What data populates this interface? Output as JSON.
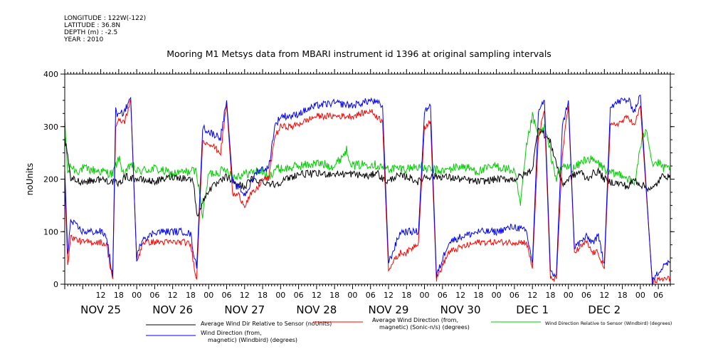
{
  "header": {
    "meta_lines": [
      "LONGITUDE : 122W(-122)",
      "LATITUDE : 36.8N",
      "DEPTH (m) : -2.5",
      "YEAR : 2010"
    ],
    "title": "Mooring M1 Metsys data from MBARI instrument id 1396 at original sampling intervals"
  },
  "chart_data": {
    "type": "line",
    "title": "Mooring M1 Metsys data from MBARI instrument id 1396 at original sampling intervals",
    "ylabel": "noUnits",
    "xlabel": "",
    "ylim": [
      0,
      400
    ],
    "yticks": [
      0,
      100,
      200,
      300,
      400
    ],
    "xlim_hours": [
      0,
      202
    ],
    "x_hour_tick_labels": [
      {
        "hour": 12,
        "label": "12"
      },
      {
        "hour": 18,
        "label": "18"
      },
      {
        "hour": 24,
        "label": "00"
      },
      {
        "hour": 30,
        "label": "06"
      },
      {
        "hour": 36,
        "label": "12"
      },
      {
        "hour": 42,
        "label": "18"
      },
      {
        "hour": 48,
        "label": "00"
      },
      {
        "hour": 54,
        "label": "06"
      },
      {
        "hour": 60,
        "label": "12"
      },
      {
        "hour": 66,
        "label": "18"
      },
      {
        "hour": 72,
        "label": "00"
      },
      {
        "hour": 78,
        "label": "06"
      },
      {
        "hour": 84,
        "label": "12"
      },
      {
        "hour": 90,
        "label": "18"
      },
      {
        "hour": 96,
        "label": "00"
      },
      {
        "hour": 102,
        "label": "06"
      },
      {
        "hour": 108,
        "label": "12"
      },
      {
        "hour": 114,
        "label": "18"
      },
      {
        "hour": 120,
        "label": "00"
      },
      {
        "hour": 126,
        "label": "06"
      },
      {
        "hour": 132,
        "label": "12"
      },
      {
        "hour": 138,
        "label": "18"
      },
      {
        "hour": 144,
        "label": "00"
      },
      {
        "hour": 150,
        "label": "06"
      },
      {
        "hour": 156,
        "label": "12"
      },
      {
        "hour": 162,
        "label": "18"
      },
      {
        "hour": 168,
        "label": "00"
      },
      {
        "hour": 174,
        "label": "06"
      },
      {
        "hour": 180,
        "label": "12"
      },
      {
        "hour": 186,
        "label": "18"
      },
      {
        "hour": 192,
        "label": "00"
      },
      {
        "hour": 198,
        "label": "06"
      }
    ],
    "x_day_labels": [
      {
        "hour": 12,
        "label": "NOV 25"
      },
      {
        "hour": 36,
        "label": "NOV 26"
      },
      {
        "hour": 60,
        "label": "NOV 27"
      },
      {
        "hour": 84,
        "label": "NOV 28"
      },
      {
        "hour": 108,
        "label": "NOV 29"
      },
      {
        "hour": 132,
        "label": "NOV 30"
      },
      {
        "hour": 156,
        "label": "DEC  1"
      },
      {
        "hour": 180,
        "label": "DEC  2"
      }
    ],
    "series": [
      {
        "name": "Average Wind Dir Relative to Sensor (noUnits)",
        "color": "#000000",
        "x": [
          0,
          2,
          6,
          12,
          16,
          18,
          20,
          24,
          30,
          36,
          42,
          43,
          44,
          48,
          52,
          54,
          55,
          56,
          60,
          62,
          66,
          70,
          74,
          78,
          84,
          90,
          96,
          102,
          104,
          106,
          108,
          110,
          114,
          118,
          120,
          126,
          132,
          138,
          144,
          150,
          154,
          156,
          158,
          162,
          166,
          168,
          172,
          174,
          176,
          178,
          180,
          182,
          186,
          188,
          190,
          192,
          196,
          200,
          202
        ],
        "y": [
          280,
          200,
          195,
          200,
          195,
          190,
          205,
          200,
          195,
          205,
          200,
          195,
          130,
          180,
          195,
          205,
          200,
          195,
          185,
          200,
          195,
          190,
          200,
          210,
          210,
          210,
          210,
          205,
          215,
          200,
          195,
          205,
          205,
          195,
          205,
          205,
          200,
          195,
          200,
          200,
          210,
          220,
          300,
          270,
          190,
          200,
          215,
          200,
          210,
          215,
          200,
          195,
          190,
          185,
          200,
          190,
          180,
          210,
          200
        ]
      },
      {
        "name": "Average Wind Direction (from, magnetic) (Sonic-n/s) (degrees)",
        "color": "#ff0000",
        "x": [
          0,
          1,
          2,
          6,
          12,
          14,
          15,
          16,
          17,
          18,
          20,
          22,
          24,
          26,
          28,
          30,
          34,
          40,
          42,
          43,
          44,
          46,
          48,
          52,
          54,
          56,
          58,
          60,
          62,
          64,
          66,
          68,
          70,
          72,
          76,
          80,
          84,
          90,
          96,
          102,
          106,
          108,
          112,
          114,
          116,
          118,
          120,
          122,
          124,
          128,
          132,
          138,
          144,
          150,
          154,
          156,
          158,
          160,
          162,
          164,
          166,
          168,
          170,
          172,
          174,
          176,
          178,
          180,
          182,
          186,
          188,
          190,
          192,
          196,
          200,
          202
        ],
        "y": [
          200,
          40,
          90,
          80,
          80,
          75,
          40,
          10,
          300,
          310,
          310,
          350,
          40,
          80,
          80,
          80,
          80,
          80,
          75,
          40,
          10,
          270,
          270,
          250,
          345,
          170,
          170,
          150,
          170,
          180,
          200,
          200,
          280,
          300,
          300,
          310,
          320,
          320,
          320,
          330,
          310,
          30,
          60,
          60,
          70,
          80,
          300,
          310,
          10,
          60,
          70,
          80,
          80,
          80,
          80,
          30,
          280,
          330,
          10,
          10,
          250,
          340,
          60,
          70,
          80,
          60,
          60,
          30,
          300,
          310,
          320,
          300,
          340,
          5,
          10,
          10
        ]
      },
      {
        "name": "Wind Direction Relative to Sensor (Windbird) (degrees)",
        "color": "#00cc00",
        "x": [
          0,
          1,
          2,
          4,
          6,
          12,
          16,
          18,
          20,
          22,
          24,
          30,
          36,
          42,
          44,
          46,
          48,
          52,
          54,
          56,
          60,
          64,
          66,
          68,
          70,
          74,
          78,
          84,
          90,
          94,
          96,
          102,
          108,
          114,
          118,
          120,
          126,
          132,
          138,
          144,
          150,
          152,
          154,
          156,
          158,
          160,
          162,
          164,
          166,
          170,
          174,
          178,
          180,
          182,
          186,
          190,
          192,
          194,
          196,
          198,
          200,
          202
        ],
        "y": [
          310,
          210,
          225,
          215,
          220,
          215,
          210,
          240,
          205,
          230,
          215,
          220,
          210,
          215,
          215,
          130,
          210,
          215,
          220,
          205,
          210,
          215,
          215,
          200,
          220,
          220,
          225,
          230,
          225,
          255,
          225,
          230,
          220,
          220,
          225,
          220,
          215,
          225,
          215,
          225,
          215,
          150,
          260,
          320,
          280,
          300,
          250,
          200,
          225,
          220,
          240,
          230,
          220,
          210,
          210,
          190,
          260,
          300,
          230,
          230,
          220,
          220
        ]
      },
      {
        "name": "Wind Direction (from, magnetic) (Windbird) (degrees)",
        "color": "#0000ff",
        "x": [
          0,
          1,
          2,
          6,
          12,
          14,
          15,
          16,
          17,
          18,
          20,
          22,
          24,
          26,
          28,
          30,
          34,
          40,
          42,
          43,
          44,
          46,
          48,
          52,
          54,
          56,
          58,
          60,
          62,
          64,
          66,
          68,
          70,
          72,
          76,
          80,
          84,
          90,
          96,
          102,
          106,
          108,
          112,
          114,
          116,
          118,
          120,
          122,
          124,
          128,
          132,
          138,
          144,
          150,
          154,
          156,
          158,
          160,
          162,
          164,
          166,
          168,
          170,
          172,
          174,
          176,
          178,
          180,
          182,
          186,
          188,
          190,
          192,
          196,
          200,
          202
        ],
        "y": [
          220,
          60,
          120,
          100,
          100,
          90,
          50,
          15,
          330,
          320,
          330,
          355,
          50,
          90,
          90,
          100,
          100,
          100,
          95,
          60,
          30,
          300,
          290,
          280,
          350,
          190,
          185,
          170,
          190,
          215,
          220,
          220,
          300,
          320,
          320,
          330,
          340,
          345,
          340,
          350,
          340,
          40,
          100,
          100,
          100,
          100,
          330,
          340,
          15,
          80,
          90,
          100,
          100,
          110,
          100,
          40,
          330,
          350,
          20,
          20,
          300,
          350,
          70,
          80,
          90,
          80,
          90,
          40,
          340,
          350,
          350,
          330,
          360,
          5,
          40,
          40
        ]
      }
    ],
    "legend_placement": "bottom",
    "grid": false
  }
}
